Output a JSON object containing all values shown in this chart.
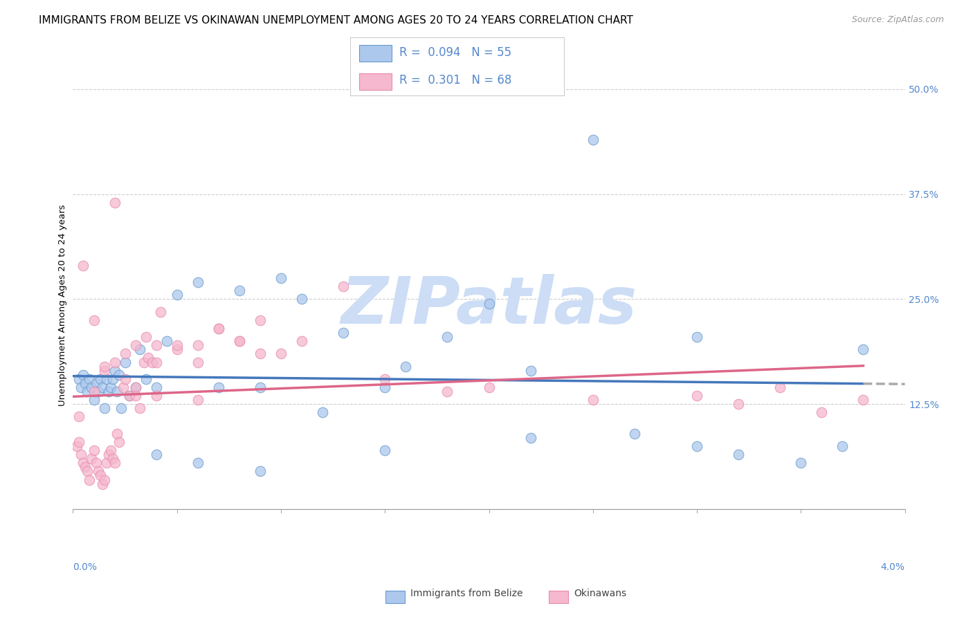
{
  "title": "IMMIGRANTS FROM BELIZE VS OKINAWAN UNEMPLOYMENT AMONG AGES 20 TO 24 YEARS CORRELATION CHART",
  "source": "Source: ZipAtlas.com",
  "ylabel": "Unemployment Among Ages 20 to 24 years",
  "y_ticks": [
    0.0,
    0.125,
    0.25,
    0.375,
    0.5
  ],
  "y_tick_labels": [
    "",
    "12.5%",
    "25.0%",
    "37.5%",
    "50.0%"
  ],
  "x_range": [
    0.0,
    0.04
  ],
  "y_range": [
    -0.055,
    0.54
  ],
  "legend1_R": "0.094",
  "legend1_N": "55",
  "legend2_R": "0.301",
  "legend2_N": "68",
  "blue_fill": "#adc8ed",
  "pink_fill": "#f5b8ce",
  "blue_edge": "#6699cc",
  "pink_edge": "#e88aaa",
  "blue_line": "#4477bb",
  "pink_line": "#dd6688",
  "dashed_line": "#aaaaaa",
  "watermark_color": "#ccddf5",
  "legend_label1": "Immigrants from Belize",
  "legend_label2": "Okinawans",
  "blue_scatter_x": [
    0.0003,
    0.0004,
    0.0005,
    0.0006,
    0.0007,
    0.0008,
    0.0009,
    0.001,
    0.0011,
    0.0012,
    0.0013,
    0.0014,
    0.0015,
    0.0016,
    0.0017,
    0.0018,
    0.0019,
    0.002,
    0.0021,
    0.0022,
    0.0023,
    0.0025,
    0.0027,
    0.003,
    0.0032,
    0.0035,
    0.004,
    0.0045,
    0.005,
    0.006,
    0.007,
    0.008,
    0.009,
    0.01,
    0.011,
    0.012,
    0.013,
    0.015,
    0.016,
    0.018,
    0.02,
    0.022,
    0.025,
    0.027,
    0.03,
    0.032,
    0.035,
    0.037,
    0.038,
    0.004,
    0.006,
    0.009,
    0.015,
    0.022,
    0.03
  ],
  "blue_scatter_y": [
    0.155,
    0.145,
    0.16,
    0.15,
    0.14,
    0.155,
    0.145,
    0.13,
    0.15,
    0.14,
    0.155,
    0.145,
    0.12,
    0.155,
    0.14,
    0.145,
    0.155,
    0.165,
    0.14,
    0.16,
    0.12,
    0.175,
    0.135,
    0.145,
    0.19,
    0.155,
    0.145,
    0.2,
    0.255,
    0.27,
    0.145,
    0.26,
    0.145,
    0.275,
    0.25,
    0.115,
    0.21,
    0.145,
    0.17,
    0.205,
    0.245,
    0.165,
    0.44,
    0.09,
    0.205,
    0.065,
    0.055,
    0.075,
    0.19,
    0.065,
    0.055,
    0.045,
    0.07,
    0.085,
    0.075
  ],
  "pink_scatter_x": [
    0.0002,
    0.0003,
    0.0004,
    0.0005,
    0.0006,
    0.0007,
    0.0008,
    0.0009,
    0.001,
    0.0011,
    0.0012,
    0.0013,
    0.0014,
    0.0015,
    0.0016,
    0.0017,
    0.0018,
    0.0019,
    0.002,
    0.0021,
    0.0022,
    0.0024,
    0.0025,
    0.0027,
    0.003,
    0.0032,
    0.0034,
    0.0036,
    0.0038,
    0.004,
    0.0042,
    0.005,
    0.006,
    0.007,
    0.008,
    0.009,
    0.001,
    0.0015,
    0.002,
    0.0025,
    0.003,
    0.0035,
    0.004,
    0.005,
    0.006,
    0.007,
    0.008,
    0.009,
    0.01,
    0.011,
    0.013,
    0.015,
    0.018,
    0.02,
    0.025,
    0.03,
    0.032,
    0.034,
    0.036,
    0.038,
    0.0003,
    0.0005,
    0.001,
    0.0015,
    0.002,
    0.003,
    0.004,
    0.006
  ],
  "pink_scatter_y": [
    0.075,
    0.08,
    0.065,
    0.055,
    0.05,
    0.045,
    0.035,
    0.06,
    0.07,
    0.055,
    0.045,
    0.04,
    0.03,
    0.035,
    0.055,
    0.065,
    0.07,
    0.06,
    0.055,
    0.09,
    0.08,
    0.145,
    0.155,
    0.135,
    0.145,
    0.12,
    0.175,
    0.18,
    0.175,
    0.195,
    0.235,
    0.19,
    0.195,
    0.215,
    0.2,
    0.185,
    0.14,
    0.165,
    0.175,
    0.185,
    0.195,
    0.205,
    0.175,
    0.195,
    0.175,
    0.215,
    0.2,
    0.225,
    0.185,
    0.2,
    0.265,
    0.155,
    0.14,
    0.145,
    0.13,
    0.135,
    0.125,
    0.145,
    0.115,
    0.13,
    0.11,
    0.29,
    0.225,
    0.17,
    0.365,
    0.135,
    0.135,
    0.13
  ],
  "title_fontsize": 11,
  "axis_label_fontsize": 9.5,
  "tick_fontsize": 10,
  "source_fontsize": 9,
  "scatter_size": 110,
  "scatter_alpha": 0.75
}
